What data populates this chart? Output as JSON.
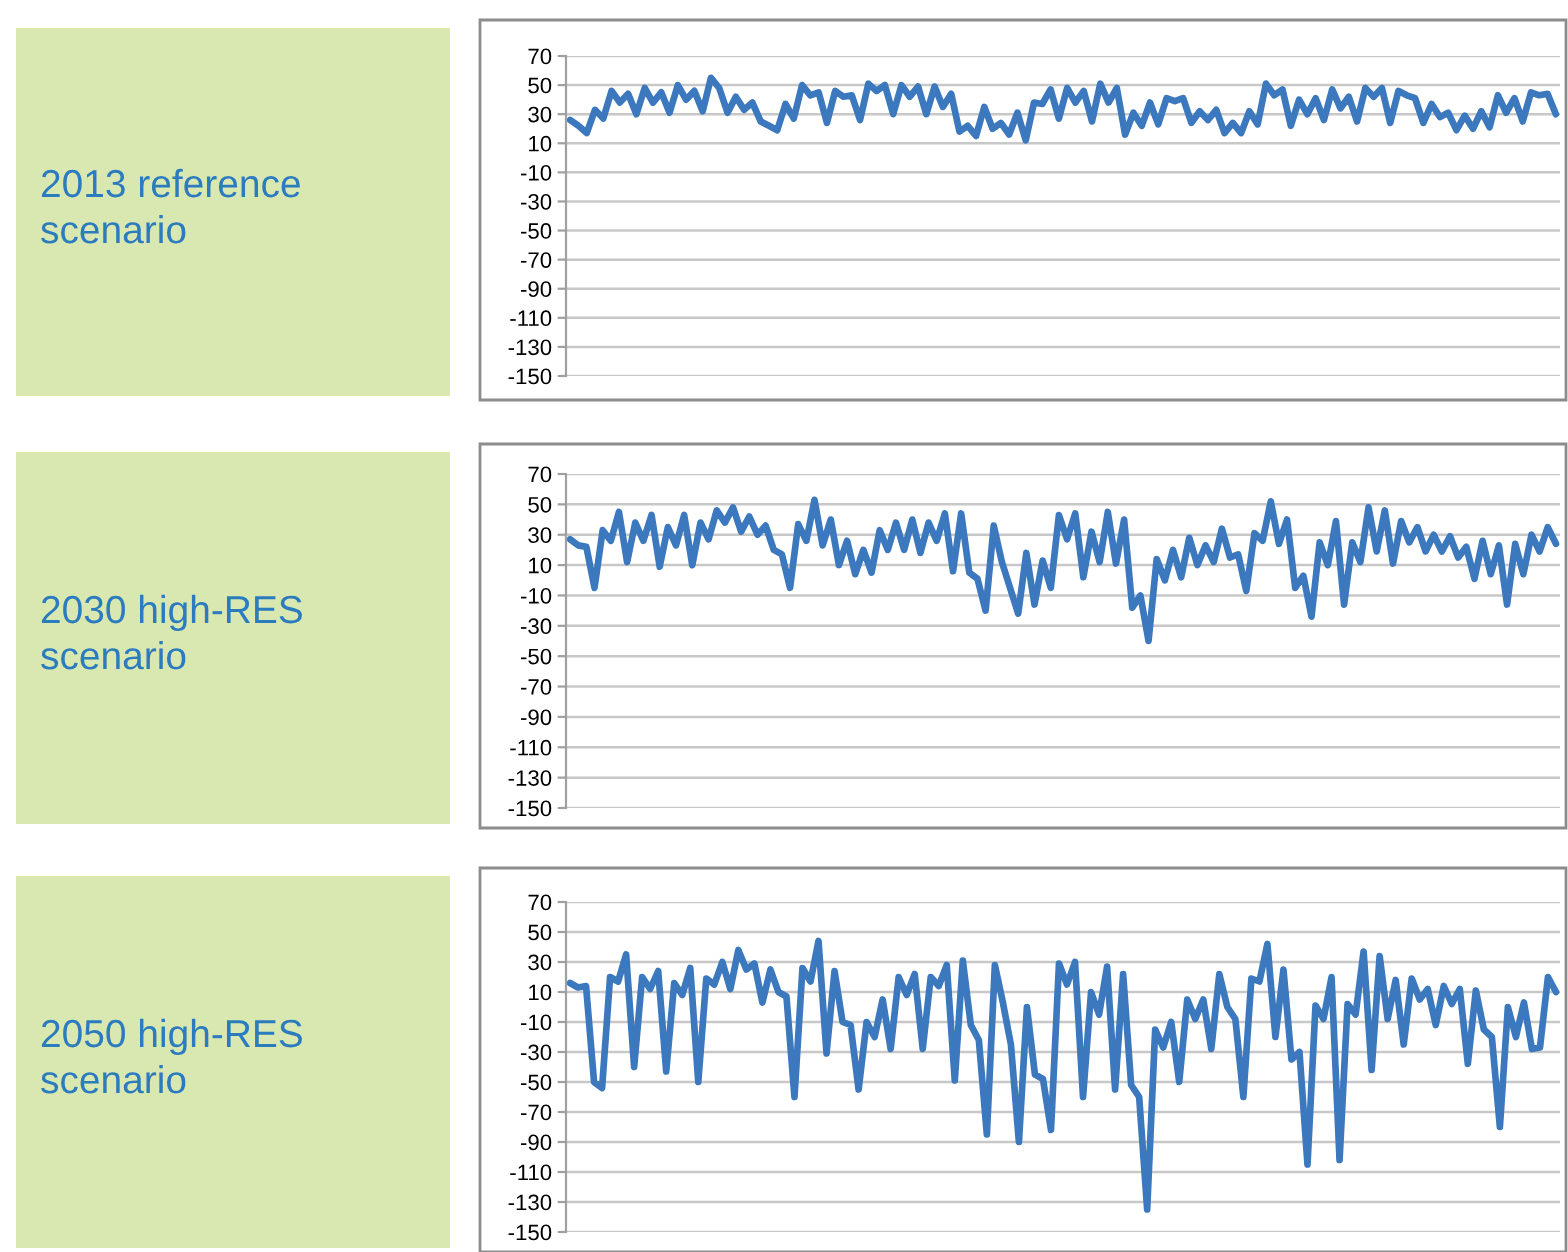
{
  "chart_data": [
    {
      "type": "line",
      "title": "2013 reference scenario",
      "categories": [
        null,
        null,
        null,
        null,
        null,
        null,
        null,
        null,
        null,
        null,
        null,
        null,
        null,
        null,
        null,
        null,
        null,
        null,
        null,
        null,
        null,
        null,
        null,
        null,
        null,
        null,
        null,
        null,
        null,
        null,
        null,
        null,
        null,
        null,
        null,
        null,
        null,
        null,
        null,
        null,
        null,
        null,
        null,
        null,
        null,
        null,
        null,
        null,
        null,
        null,
        null,
        null,
        null,
        null,
        null,
        null,
        null,
        null,
        null,
        null,
        null,
        null,
        null,
        null,
        null,
        null,
        null,
        null,
        null,
        null,
        null,
        null,
        null,
        null,
        null,
        null,
        null,
        null,
        null,
        null,
        null,
        null,
        null,
        null,
        null,
        null,
        null,
        null,
        null,
        null,
        null,
        null,
        null,
        null,
        null,
        null,
        null,
        null,
        null,
        null,
        null,
        null,
        null,
        null,
        null,
        null,
        null,
        null,
        null,
        null,
        null,
        null,
        null,
        null,
        null,
        null,
        null,
        null,
        null,
        null
      ],
      "ylim": [
        -150,
        70
      ],
      "yticks": [
        -150,
        -130,
        -110,
        -90,
        -70,
        -50,
        -30,
        -10,
        10,
        30,
        50,
        70
      ],
      "grid": "y",
      "tick_labels": "y",
      "marker": "none",
      "line_style": "solid",
      "series": [
        {
          "color": "#3b78bd",
          "values": [
            26,
            22,
            17,
            33,
            27,
            46,
            38,
            44,
            30,
            48,
            38,
            45,
            31,
            50,
            40,
            46,
            32,
            55,
            48,
            31,
            42,
            33,
            38,
            25,
            22,
            19,
            37,
            27,
            50,
            43,
            45,
            24,
            46,
            42,
            43,
            26,
            51,
            46,
            50,
            30,
            50,
            42,
            49,
            30,
            49,
            35,
            44,
            18,
            22,
            15,
            35,
            20,
            24,
            16,
            31,
            12,
            38,
            37,
            47,
            27,
            48,
            38,
            46,
            25,
            51,
            38,
            48,
            16,
            31,
            22,
            38,
            23,
            41,
            39,
            41,
            24,
            32,
            26,
            33,
            17,
            24,
            17,
            32,
            23,
            51,
            43,
            47,
            22,
            40,
            30,
            41,
            26,
            47,
            34,
            42,
            25,
            48,
            42,
            48,
            24,
            46,
            43,
            41,
            24,
            37,
            28,
            31,
            19,
            29,
            20,
            32,
            21,
            43,
            31,
            41,
            25,
            45,
            43,
            44,
            30
          ]
        }
      ]
    },
    {
      "type": "line",
      "title": "2030 high-RES scenario",
      "categories": [
        null,
        null,
        null,
        null,
        null,
        null,
        null,
        null,
        null,
        null,
        null,
        null,
        null,
        null,
        null,
        null,
        null,
        null,
        null,
        null,
        null,
        null,
        null,
        null,
        null,
        null,
        null,
        null,
        null,
        null,
        null,
        null,
        null,
        null,
        null,
        null,
        null,
        null,
        null,
        null,
        null,
        null,
        null,
        null,
        null,
        null,
        null,
        null,
        null,
        null,
        null,
        null,
        null,
        null,
        null,
        null,
        null,
        null,
        null,
        null,
        null,
        null,
        null,
        null,
        null,
        null,
        null,
        null,
        null,
        null,
        null,
        null,
        null,
        null,
        null,
        null,
        null,
        null,
        null,
        null,
        null,
        null,
        null,
        null,
        null,
        null,
        null,
        null,
        null,
        null,
        null,
        null,
        null,
        null,
        null,
        null,
        null,
        null,
        null,
        null,
        null,
        null,
        null,
        null,
        null,
        null,
        null,
        null,
        null,
        null,
        null,
        null,
        null,
        null,
        null,
        null,
        null,
        null,
        null,
        null,
        null,
        null
      ],
      "ylim": [
        -150,
        70
      ],
      "yticks": [
        -150,
        -130,
        -110,
        -90,
        -70,
        -50,
        -30,
        -10,
        10,
        30,
        50,
        70
      ],
      "grid": "y",
      "tick_labels": "y",
      "marker": "none",
      "line_style": "solid",
      "series": [
        {
          "color": "#3b78bd",
          "values": [
            27,
            23,
            22,
            -5,
            33,
            26,
            45,
            12,
            38,
            26,
            43,
            9,
            35,
            23,
            43,
            10,
            38,
            27,
            46,
            38,
            48,
            32,
            42,
            30,
            36,
            20,
            17,
            -5,
            37,
            26,
            53,
            23,
            40,
            10,
            26,
            4,
            20,
            5,
            33,
            20,
            38,
            20,
            40,
            18,
            38,
            26,
            44,
            6,
            44,
            5,
            1,
            -20,
            36,
            12,
            -5,
            -22,
            18,
            -16,
            13,
            -5,
            43,
            27,
            44,
            2,
            32,
            12,
            45,
            11,
            40,
            -18,
            -10,
            -40,
            14,
            0,
            20,
            2,
            28,
            10,
            23,
            12,
            34,
            15,
            17,
            -7,
            31,
            26,
            52,
            24,
            40,
            -5,
            3,
            -24,
            25,
            10,
            39,
            -16,
            25,
            12,
            48,
            19,
            46,
            11,
            39,
            25,
            35,
            19,
            30,
            19,
            29,
            15,
            22,
            1,
            26,
            4,
            23,
            -16,
            24,
            4,
            30,
            19,
            35,
            24
          ]
        }
      ]
    },
    {
      "type": "line",
      "title": "2050 high-RES scenario",
      "categories": [
        null,
        null,
        null,
        null,
        null,
        null,
        null,
        null,
        null,
        null,
        null,
        null,
        null,
        null,
        null,
        null,
        null,
        null,
        null,
        null,
        null,
        null,
        null,
        null,
        null,
        null,
        null,
        null,
        null,
        null,
        null,
        null,
        null,
        null,
        null,
        null,
        null,
        null,
        null,
        null,
        null,
        null,
        null,
        null,
        null,
        null,
        null,
        null,
        null,
        null,
        null,
        null,
        null,
        null,
        null,
        null,
        null,
        null,
        null,
        null,
        null,
        null,
        null,
        null,
        null,
        null,
        null,
        null,
        null,
        null,
        null,
        null,
        null,
        null,
        null,
        null,
        null,
        null,
        null,
        null,
        null,
        null,
        null,
        null,
        null,
        null,
        null,
        null,
        null,
        null,
        null,
        null,
        null,
        null,
        null,
        null,
        null,
        null,
        null,
        null,
        null,
        null,
        null,
        null,
        null,
        null,
        null,
        null,
        null,
        null,
        null,
        null,
        null,
        null,
        null,
        null,
        null,
        null,
        null,
        null,
        null,
        null,
        null,
        null
      ],
      "ylim": [
        -150,
        70
      ],
      "yticks": [
        -150,
        -130,
        -110,
        -90,
        -70,
        -50,
        -30,
        -10,
        10,
        30,
        50,
        70
      ],
      "grid": "y",
      "tick_labels": "y",
      "marker": "none",
      "line_style": "solid",
      "series": [
        {
          "color": "#3b78bd",
          "values": [
            16,
            13,
            14,
            -50,
            -54,
            20,
            17,
            35,
            -40,
            20,
            12,
            24,
            -43,
            16,
            8,
            26,
            -50,
            19,
            15,
            30,
            12,
            38,
            25,
            29,
            3,
            25,
            10,
            7,
            -60,
            26,
            17,
            44,
            -31,
            24,
            -10,
            -12,
            -55,
            -10,
            -20,
            5,
            -28,
            20,
            8,
            22,
            -28,
            20,
            14,
            28,
            -49,
            31,
            -12,
            -22,
            -85,
            28,
            3,
            -25,
            -90,
            0,
            -45,
            -48,
            -82,
            29,
            15,
            30,
            -60,
            10,
            -5,
            27,
            -55,
            22,
            -52,
            -60,
            -135,
            -15,
            -27,
            -10,
            -50,
            5,
            -8,
            5,
            -28,
            22,
            0,
            -8,
            -60,
            19,
            17,
            42,
            -20,
            25,
            -35,
            -30,
            -105,
            1,
            -8,
            20,
            -102,
            2,
            -5,
            37,
            -42,
            34,
            -8,
            18,
            -25,
            19,
            5,
            12,
            -12,
            14,
            2,
            12,
            -38,
            11,
            -15,
            -20,
            -80,
            0,
            -20,
            3,
            -28,
            -27,
            20,
            10
          ]
        }
      ]
    }
  ]
}
